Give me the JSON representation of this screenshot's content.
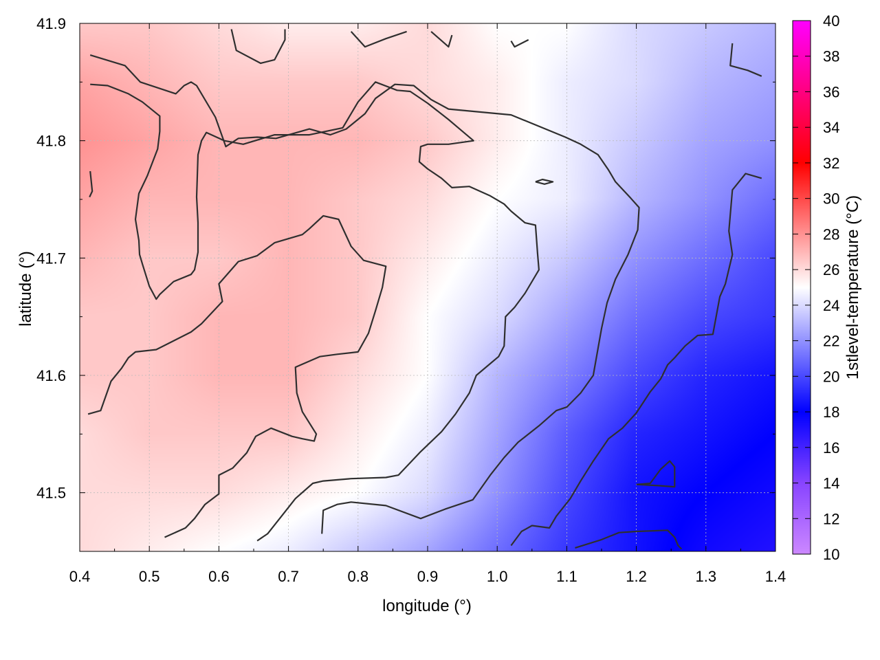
{
  "chart_data": {
    "type": "heatmap",
    "xlabel": "longitude (°)",
    "ylabel": "latitude (°)",
    "colorbar_label": "1stlevel-temperature (°C)",
    "xlim": [
      0.4,
      1.4
    ],
    "ylim": [
      41.45,
      41.9
    ],
    "x_ticks": [
      "0.4",
      "0.5",
      "0.6",
      "0.7",
      "0.8",
      "0.9",
      "1.0",
      "1.1",
      "1.2",
      "1.3",
      "1.4"
    ],
    "y_ticks": [
      "41.5",
      "41.6",
      "41.7",
      "41.8",
      "41.9"
    ],
    "colorbar_range": [
      10,
      40
    ],
    "colorbar_ticks": [
      "10",
      "12",
      "14",
      "16",
      "18",
      "20",
      "22",
      "24",
      "26",
      "28",
      "30",
      "32",
      "34",
      "36",
      "38",
      "40"
    ],
    "grid": true,
    "colorscale": [
      {
        "value": 10,
        "color": "#cc88ff"
      },
      {
        "value": 14,
        "color": "#8844ff"
      },
      {
        "value": 18,
        "color": "#0000ff"
      },
      {
        "value": 25,
        "color": "#ffffff"
      },
      {
        "value": 32,
        "color": "#ff0000"
      },
      {
        "value": 40,
        "color": "#ff00ff"
      }
    ],
    "temperature_field": {
      "lon": [
        0.4,
        0.5,
        0.6,
        0.7,
        0.8,
        0.9,
        1.0,
        1.1,
        1.2,
        1.3,
        1.4
      ],
      "lat": [
        41.9,
        41.85,
        41.8,
        41.75,
        41.7,
        41.65,
        41.6,
        41.55,
        41.5,
        41.45
      ],
      "values": [
        [
          26.5,
          26.5,
          26,
          25.5,
          25.5,
          26,
          25,
          25,
          24,
          23.5,
          23
        ],
        [
          27.5,
          27,
          26.5,
          26.5,
          26.5,
          26,
          25.5,
          24.5,
          24,
          23,
          22.5
        ],
        [
          28,
          27.5,
          27,
          27,
          27,
          26.5,
          25.5,
          24.5,
          23.5,
          22.5,
          22
        ],
        [
          27.5,
          27,
          27,
          27,
          26.5,
          26,
          25,
          24.5,
          23,
          22,
          21
        ],
        [
          27,
          26.5,
          26.5,
          27,
          26.5,
          25.5,
          24.5,
          23.5,
          22,
          21,
          20
        ],
        [
          26.5,
          26.5,
          27,
          27,
          26.5,
          25,
          24,
          22.5,
          21,
          20,
          19.5
        ],
        [
          26.5,
          26.5,
          27,
          27,
          26,
          25,
          23,
          21.5,
          20,
          19,
          18.5
        ],
        [
          26,
          26.5,
          26.5,
          26.5,
          25.5,
          24.5,
          22.5,
          20.5,
          19,
          18.5,
          18
        ],
        [
          26,
          26,
          26,
          25.5,
          25,
          24,
          22,
          20,
          18.5,
          18,
          17.5
        ],
        [
          26,
          25.5,
          25,
          24.5,
          23.5,
          22.5,
          21,
          19.5,
          18.5,
          17.5,
          17
        ]
      ]
    },
    "contour_lines": [
      [
        [
          0.415,
          41.873
        ],
        [
          0.465,
          41.864
        ],
        [
          0.487,
          41.85
        ],
        [
          0.538,
          41.84
        ],
        [
          0.55,
          41.847
        ],
        [
          0.56,
          41.85
        ],
        [
          0.568,
          41.847
        ],
        [
          0.595,
          41.82
        ],
        [
          0.61,
          41.795
        ],
        [
          0.628,
          41.802
        ],
        [
          0.655,
          41.803
        ],
        [
          0.682,
          41.802
        ],
        [
          0.73,
          41.81
        ],
        [
          0.76,
          41.805
        ],
        [
          0.783,
          41.81
        ],
        [
          0.81,
          41.823
        ],
        [
          0.825,
          41.836
        ],
        [
          0.853,
          41.848
        ],
        [
          0.88,
          41.847
        ],
        [
          0.905,
          41.835
        ],
        [
          0.93,
          41.827
        ],
        [
          1.02,
          41.822
        ],
        [
          1.098,
          41.803
        ],
        [
          1.12,
          41.797
        ],
        [
          1.145,
          41.788
        ],
        [
          1.16,
          41.775
        ],
        [
          1.17,
          41.765
        ],
        [
          1.192,
          41.751
        ],
        [
          1.204,
          41.743
        ],
        [
          1.202,
          41.724
        ],
        [
          1.188,
          41.703
        ],
        [
          1.17,
          41.682
        ],
        [
          1.158,
          41.662
        ],
        [
          1.15,
          41.64
        ],
        [
          1.138,
          41.6
        ],
        [
          1.12,
          41.585
        ],
        [
          1.1,
          41.573
        ],
        [
          1.085,
          41.57
        ],
        [
          1.06,
          41.557
        ],
        [
          1.03,
          41.543
        ],
        [
          1.01,
          41.53
        ],
        [
          0.99,
          41.515
        ],
        [
          0.965,
          41.494
        ],
        [
          0.925,
          41.486
        ],
        [
          0.89,
          41.478
        ],
        [
          0.84,
          41.489
        ],
        [
          0.79,
          41.492
        ],
        [
          0.77,
          41.49
        ],
        [
          0.75,
          41.485
        ],
        [
          0.748,
          41.465
        ]
      ],
      [
        [
          0.415,
          41.848
        ],
        [
          0.44,
          41.847
        ],
        [
          0.47,
          41.84
        ],
        [
          0.49,
          41.833
        ],
        [
          0.515,
          41.821
        ],
        [
          0.515,
          41.808
        ],
        [
          0.512,
          41.793
        ],
        [
          0.497,
          41.77
        ],
        [
          0.485,
          41.755
        ],
        [
          0.48,
          41.733
        ],
        [
          0.485,
          41.715
        ],
        [
          0.486,
          41.703
        ],
        [
          0.49,
          41.695
        ],
        [
          0.5,
          41.676
        ],
        [
          0.51,
          41.665
        ],
        [
          0.515,
          41.669
        ],
        [
          0.535,
          41.68
        ],
        [
          0.56,
          41.686
        ],
        [
          0.565,
          41.69
        ],
        [
          0.57,
          41.705
        ],
        [
          0.57,
          41.73
        ],
        [
          0.568,
          41.752
        ],
        [
          0.57,
          41.788
        ],
        [
          0.575,
          41.8
        ],
        [
          0.582,
          41.807
        ],
        [
          0.608,
          41.8
        ],
        [
          0.635,
          41.797
        ],
        [
          0.68,
          41.805
        ],
        [
          0.73,
          41.805
        ],
        [
          0.778,
          41.811
        ],
        [
          0.8,
          41.833
        ],
        [
          0.825,
          41.85
        ],
        [
          0.856,
          41.843
        ],
        [
          0.875,
          41.842
        ],
        [
          0.9,
          41.832
        ],
        [
          0.93,
          41.818
        ],
        [
          0.948,
          41.809
        ],
        [
          0.966,
          41.8
        ],
        [
          0.93,
          41.797
        ],
        [
          0.9,
          41.797
        ],
        [
          0.89,
          41.795
        ],
        [
          0.888,
          41.782
        ],
        [
          0.9,
          41.776
        ],
        [
          0.92,
          41.768
        ],
        [
          0.935,
          41.76
        ],
        [
          0.96,
          41.761
        ],
        [
          0.99,
          41.753
        ],
        [
          1.01,
          41.746
        ],
        [
          1.02,
          41.74
        ],
        [
          1.04,
          41.73
        ],
        [
          1.055,
          41.728
        ],
        [
          1.058,
          41.704
        ],
        [
          1.06,
          41.69
        ],
        [
          1.04,
          41.67
        ],
        [
          1.025,
          41.658
        ],
        [
          1.012,
          41.65
        ],
        [
          1.01,
          41.625
        ],
        [
          1.002,
          41.616
        ],
        [
          0.99,
          41.61
        ],
        [
          0.97,
          41.6
        ],
        [
          0.96,
          41.585
        ],
        [
          0.94,
          41.567
        ],
        [
          0.92,
          41.552
        ],
        [
          0.89,
          41.535
        ],
        [
          0.858,
          41.515
        ],
        [
          0.84,
          41.513
        ],
        [
          0.79,
          41.512
        ],
        [
          0.75,
          41.51
        ],
        [
          0.735,
          41.508
        ],
        [
          0.71,
          41.495
        ],
        [
          0.69,
          41.48
        ],
        [
          0.67,
          41.465
        ],
        [
          0.655,
          41.459
        ]
      ],
      [
        [
          0.412,
          41.567
        ],
        [
          0.43,
          41.57
        ],
        [
          0.445,
          41.595
        ],
        [
          0.46,
          41.606
        ],
        [
          0.47,
          41.615
        ],
        [
          0.48,
          41.62
        ],
        [
          0.51,
          41.622
        ],
        [
          0.56,
          41.637
        ],
        [
          0.575,
          41.644
        ],
        [
          0.605,
          41.663
        ],
        [
          0.6,
          41.678
        ],
        [
          0.628,
          41.697
        ],
        [
          0.655,
          41.702
        ],
        [
          0.68,
          41.713
        ],
        [
          0.72,
          41.72
        ],
        [
          0.73,
          41.725
        ],
        [
          0.75,
          41.736
        ],
        [
          0.772,
          41.733
        ],
        [
          0.79,
          41.71
        ],
        [
          0.808,
          41.698
        ],
        [
          0.84,
          41.693
        ],
        [
          0.835,
          41.675
        ],
        [
          0.825,
          41.655
        ],
        [
          0.815,
          41.636
        ],
        [
          0.8,
          41.62
        ],
        [
          0.77,
          41.618
        ],
        [
          0.745,
          41.616
        ],
        [
          0.71,
          41.607
        ],
        [
          0.712,
          41.585
        ],
        [
          0.72,
          41.569
        ],
        [
          0.74,
          41.55
        ],
        [
          0.737,
          41.544
        ],
        [
          0.72,
          41.546
        ],
        [
          0.705,
          41.548
        ],
        [
          0.675,
          41.555
        ],
        [
          0.653,
          41.548
        ],
        [
          0.64,
          41.534
        ],
        [
          0.62,
          41.521
        ],
        [
          0.6,
          41.515
        ],
        [
          0.6,
          41.499
        ],
        [
          0.58,
          41.49
        ],
        [
          0.565,
          41.478
        ],
        [
          0.552,
          41.47
        ],
        [
          0.522,
          41.462
        ]
      ],
      [
        [
          0.618,
          41.895
        ],
        [
          0.625,
          41.877
        ],
        [
          0.66,
          41.866
        ],
        [
          0.68,
          41.869
        ],
        [
          0.695,
          41.886
        ],
        [
          0.695,
          41.895
        ]
      ],
      [
        [
          0.79,
          41.893
        ],
        [
          0.81,
          41.88
        ],
        [
          0.84,
          41.887
        ],
        [
          0.87,
          41.893
        ]
      ],
      [
        [
          0.905,
          41.893
        ],
        [
          0.93,
          41.88
        ],
        [
          0.935,
          41.89
        ]
      ],
      [
        [
          1.02,
          41.885
        ],
        [
          1.025,
          41.88
        ],
        [
          1.045,
          41.886
        ]
      ],
      [
        [
          1.338,
          41.883
        ],
        [
          1.335,
          41.864
        ],
        [
          1.36,
          41.86
        ],
        [
          1.38,
          41.855
        ]
      ],
      [
        [
          0.415,
          41.774
        ],
        [
          0.418,
          41.757
        ],
        [
          0.414,
          41.752
        ]
      ],
      [
        [
          1.055,
          41.765
        ],
        [
          1.065,
          41.767
        ],
        [
          1.08,
          41.765
        ],
        [
          1.068,
          41.763
        ],
        [
          1.055,
          41.765
        ]
      ],
      [
        [
          1.38,
          41.768
        ],
        [
          1.357,
          41.772
        ],
        [
          1.338,
          41.758
        ],
        [
          1.333,
          41.723
        ],
        [
          1.338,
          41.703
        ],
        [
          1.328,
          41.678
        ],
        [
          1.32,
          41.667
        ],
        [
          1.31,
          41.635
        ],
        [
          1.288,
          41.634
        ],
        [
          1.27,
          41.625
        ],
        [
          1.255,
          41.615
        ],
        [
          1.245,
          41.609
        ],
        [
          1.235,
          41.597
        ],
        [
          1.22,
          41.586
        ],
        [
          1.2,
          41.568
        ],
        [
          1.18,
          41.555
        ],
        [
          1.16,
          41.546
        ],
        [
          1.138,
          41.527
        ],
        [
          1.12,
          41.51
        ],
        [
          1.105,
          41.495
        ],
        [
          1.085,
          41.48
        ],
        [
          1.075,
          41.47
        ],
        [
          1.05,
          41.472
        ],
        [
          1.035,
          41.467
        ],
        [
          1.02,
          41.455
        ]
      ],
      [
        [
          1.2,
          41.507
        ],
        [
          1.22,
          41.508
        ],
        [
          1.235,
          41.52
        ],
        [
          1.248,
          41.527
        ],
        [
          1.255,
          41.522
        ],
        [
          1.255,
          41.505
        ],
        [
          1.232,
          41.506
        ],
        [
          1.2,
          41.507
        ]
      ],
      [
        [
          1.112,
          41.453
        ],
        [
          1.15,
          41.46
        ],
        [
          1.175,
          41.466
        ],
        [
          1.2,
          41.467
        ],
        [
          1.245,
          41.468
        ],
        [
          1.255,
          41.462
        ],
        [
          1.26,
          41.455
        ],
        [
          1.265,
          41.452
        ]
      ]
    ]
  }
}
